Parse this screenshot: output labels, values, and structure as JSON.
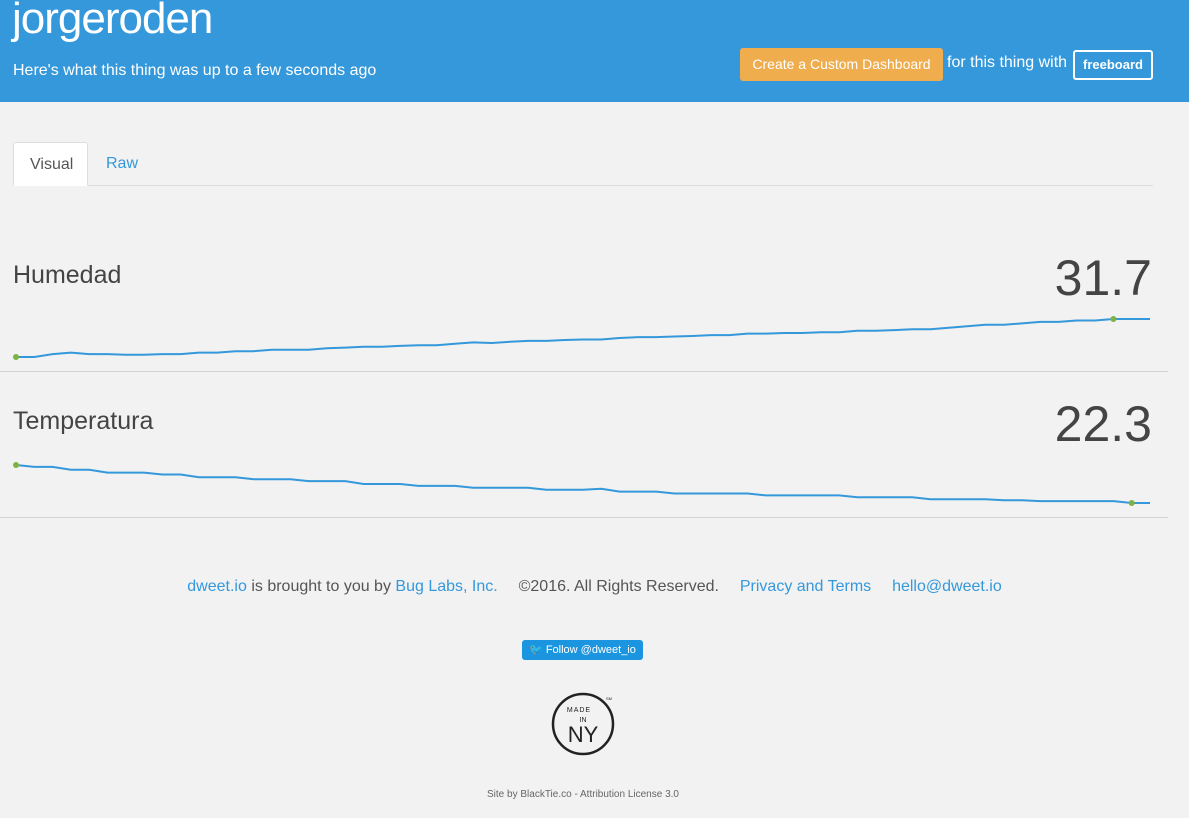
{
  "header": {
    "thing_name": "jorgeroden",
    "subtitle": "Here's what this thing was up to a few seconds ago",
    "cta_label": "Create a Custom Dashboard",
    "for_text": "for this thing with",
    "freeboard_label": "freeboard"
  },
  "tabs": [
    {
      "label": "Visual",
      "active": true
    },
    {
      "label": "Raw",
      "active": false
    }
  ],
  "metrics": [
    {
      "label": "Humedad",
      "value": "31.7"
    },
    {
      "label": "Temperatura",
      "value": "22.3"
    }
  ],
  "chart_data": [
    {
      "type": "line",
      "series": [
        {
          "values": [
            30.4,
            30.4,
            30.5,
            30.55,
            30.5,
            30.5,
            30.48,
            30.48,
            30.5,
            30.5,
            30.55,
            30.55,
            30.6,
            30.6,
            30.65,
            30.65,
            30.65,
            30.7,
            30.72,
            30.75,
            30.75,
            30.78,
            30.8,
            30.8,
            30.85,
            30.9,
            30.88,
            30.92,
            30.95,
            30.95,
            30.98,
            31.0,
            31.0,
            31.05,
            31.08,
            31.08,
            31.1,
            31.12,
            31.15,
            31.15,
            31.2,
            31.2,
            31.22,
            31.22,
            31.25,
            31.25,
            31.3,
            31.3,
            31.32,
            31.35,
            31.35,
            31.4,
            31.45,
            31.5,
            31.5,
            31.55,
            31.6,
            31.6,
            31.65,
            31.65,
            31.7,
            31.7,
            31.7
          ]
        }
      ],
      "color": "#3498db",
      "marker_color": "#7cb342"
    },
    {
      "type": "line",
      "series": [
        {
          "values": [
            22.7,
            22.68,
            22.68,
            22.65,
            22.65,
            22.62,
            22.62,
            22.62,
            22.6,
            22.6,
            22.57,
            22.57,
            22.57,
            22.55,
            22.55,
            22.55,
            22.53,
            22.53,
            22.53,
            22.5,
            22.5,
            22.5,
            22.48,
            22.48,
            22.48,
            22.46,
            22.46,
            22.46,
            22.46,
            22.44,
            22.44,
            22.44,
            22.45,
            22.42,
            22.42,
            22.42,
            22.4,
            22.4,
            22.4,
            22.4,
            22.4,
            22.38,
            22.38,
            22.38,
            22.38,
            22.38,
            22.36,
            22.36,
            22.36,
            22.36,
            22.34,
            22.34,
            22.34,
            22.34,
            22.33,
            22.33,
            22.32,
            22.32,
            22.32,
            22.32,
            22.32,
            22.3,
            22.3
          ]
        }
      ],
      "color": "#3498db",
      "marker_color": "#7cb342"
    }
  ],
  "footer": {
    "dweet_link": "dweet.io",
    "brought_text": "is brought to you by",
    "buglabs_link": "Bug Labs, Inc.",
    "rights_text": "©2016. All Rights Reserved.",
    "privacy_link": "Privacy and Terms",
    "email_link": "hello@dweet.io",
    "follow_label": "Follow @dweet_io",
    "badge_made": "MADE",
    "badge_in": "IN",
    "badge_ny": "NY",
    "badge_sm": "SM",
    "credit": "Site by BlackTie.co - Attribution License 3.0"
  },
  "icons": {
    "follow": "twitter-bird-icon"
  }
}
